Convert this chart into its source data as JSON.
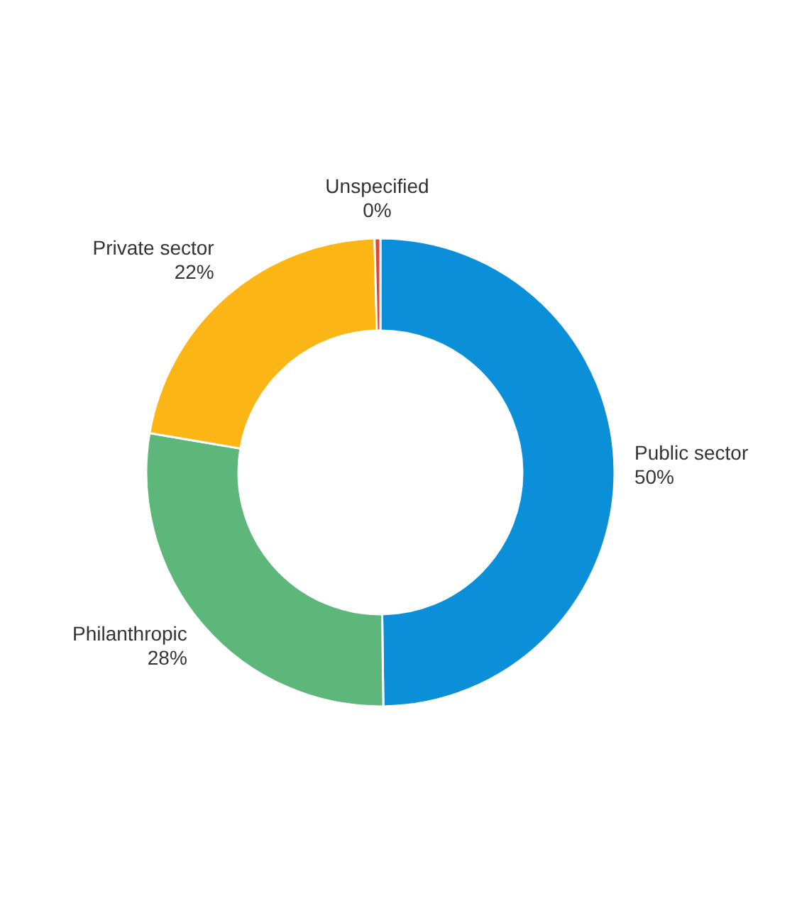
{
  "chart_data": {
    "type": "donut",
    "categories": [
      "Public sector",
      "Philanthropic",
      "Private sector",
      "Unspecified"
    ],
    "values": [
      50,
      28,
      22,
      0.4
    ],
    "value_labels": [
      "50%",
      "28%",
      "22%",
      "0%"
    ],
    "colors": [
      "#0b8fd9",
      "#5db77a",
      "#fbb616",
      "#e0463a"
    ],
    "legend": false
  }
}
